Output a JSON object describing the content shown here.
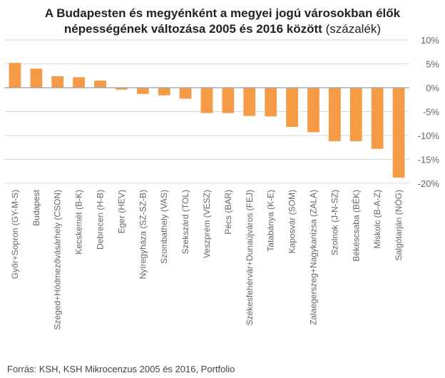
{
  "title_line1": "A Budapesten és megyénként a megyei jogú városokban élők",
  "title_line2_bold": "népességének változása 2005 és 2016 között",
  "title_unit": "(százalék)",
  "source": "Forrás: KSH, KSH Mikrocenzus 2005 és 2016, Portfolio",
  "colors": {
    "bar": "#F59A45",
    "grid": "#d9d9d9",
    "zero": "#9aa0aa"
  },
  "chart_data": {
    "type": "bar",
    "categories": [
      "Győr+Sopron (GY-M-S)",
      "Budapest",
      "Szeged+Hódmezővásárhely (CSON)",
      "Kecskemét (B-K)",
      "Debrecen (H-B)",
      "Eger (HEV)",
      "Nyíregyháza (SZ-SZ-B)",
      "Szombathely (VAS)",
      "Szekszárd (TOL)",
      "Veszprém (VESZ)",
      "Pécs (BAR)",
      "Székesfehérvár+Dunaújváros (FEJ)",
      "Tatabánya (K-E)",
      "Kaposvár (SOM)",
      "Zalaegerszeg+Nagykanizsa (ZALA)",
      "Szolnok (J-N-SZ)",
      "Békéscsaba (BÉK)",
      "Miskolc (B-A-Z)",
      "Salgótarján (NÓG)"
    ],
    "values": [
      5.2,
      4.0,
      2.4,
      2.2,
      1.5,
      -0.4,
      -1.3,
      -1.6,
      -2.3,
      -5.3,
      -5.3,
      -5.9,
      -6.0,
      -8.2,
      -9.3,
      -11.2,
      -11.2,
      -12.8,
      -18.8
    ],
    "ylim": [
      -20,
      10
    ],
    "yticks": [
      10,
      5,
      0,
      -5,
      -10,
      -15,
      -20
    ],
    "ytick_labels": [
      "10%",
      "5%",
      "0%",
      "-5%",
      "-10%",
      "-15%",
      "-20%"
    ],
    "ylabel_position": "right",
    "xlabel": "",
    "ylabel": ""
  }
}
